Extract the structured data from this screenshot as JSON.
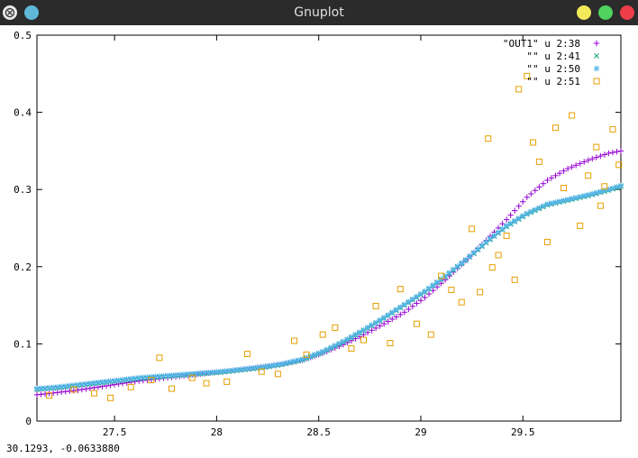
{
  "window": {
    "title": "Gnuplot",
    "menu_glyph": "⨂",
    "status": "30.1293, -0.0633880"
  },
  "colors": {
    "titlebar": "#2b2b2b",
    "series1": "#9400d3",
    "series2": "#009e73",
    "series3": "#56b4e9",
    "series4": "#e69f00"
  },
  "chart_data": {
    "type": "scatter",
    "xlim": [
      27.12,
      29.98
    ],
    "ylim": [
      0,
      0.5
    ],
    "x_ticks": [
      27.5,
      28,
      28.5,
      29,
      29.5
    ],
    "x_tick_labels": [
      "27.5",
      "28",
      "28.5",
      "29",
      "29.5"
    ],
    "y_ticks": [
      0,
      0.1,
      0.2,
      0.3,
      0.4,
      0.5
    ],
    "y_tick_labels": [
      "0",
      "0.1",
      "0.2",
      "0.3",
      "0.4",
      "0.5"
    ],
    "grid": false,
    "legend_position": "top-right",
    "series": [
      {
        "name": "\"OUT1\" u 2:38",
        "marker": "plus",
        "color": "#9400d3",
        "points": [
          [
            27.12,
            0.034
          ],
          [
            27.22,
            0.037
          ],
          [
            27.32,
            0.04
          ],
          [
            27.42,
            0.044
          ],
          [
            27.52,
            0.048
          ],
          [
            27.62,
            0.052
          ],
          [
            27.72,
            0.055
          ],
          [
            27.82,
            0.058
          ],
          [
            27.92,
            0.061
          ],
          [
            28.02,
            0.064
          ],
          [
            28.12,
            0.067
          ],
          [
            28.22,
            0.07
          ],
          [
            28.32,
            0.074
          ],
          [
            28.42,
            0.079
          ],
          [
            28.52,
            0.088
          ],
          [
            28.62,
            0.099
          ],
          [
            28.72,
            0.112
          ],
          [
            28.82,
            0.126
          ],
          [
            28.92,
            0.141
          ],
          [
            29.02,
            0.16
          ],
          [
            29.12,
            0.183
          ],
          [
            29.22,
            0.208
          ],
          [
            29.32,
            0.234
          ],
          [
            29.42,
            0.261
          ],
          [
            29.52,
            0.29
          ],
          [
            29.62,
            0.312
          ],
          [
            29.72,
            0.327
          ],
          [
            29.82,
            0.338
          ],
          [
            29.92,
            0.347
          ],
          [
            29.98,
            0.35
          ]
        ]
      },
      {
        "name": "\"\" u 2:41",
        "marker": "cross",
        "color": "#009e73",
        "points": [
          [
            27.12,
            0.041
          ],
          [
            27.22,
            0.043
          ],
          [
            27.32,
            0.046
          ],
          [
            27.42,
            0.049
          ],
          [
            27.52,
            0.052
          ],
          [
            27.62,
            0.055
          ],
          [
            27.72,
            0.057
          ],
          [
            27.82,
            0.059
          ],
          [
            27.92,
            0.061
          ],
          [
            28.02,
            0.063
          ],
          [
            28.12,
            0.066
          ],
          [
            28.22,
            0.069
          ],
          [
            28.32,
            0.073
          ],
          [
            28.42,
            0.079
          ],
          [
            28.52,
            0.089
          ],
          [
            28.62,
            0.102
          ],
          [
            28.72,
            0.117
          ],
          [
            28.82,
            0.133
          ],
          [
            28.92,
            0.15
          ],
          [
            29.02,
            0.167
          ],
          [
            29.12,
            0.187
          ],
          [
            29.22,
            0.208
          ],
          [
            29.32,
            0.231
          ],
          [
            29.42,
            0.252
          ],
          [
            29.52,
            0.268
          ],
          [
            29.62,
            0.28
          ],
          [
            29.72,
            0.286
          ],
          [
            29.82,
            0.292
          ],
          [
            29.92,
            0.299
          ],
          [
            29.98,
            0.304
          ]
        ]
      },
      {
        "name": "\"\" u 2:50",
        "marker": "star",
        "color": "#56b4e9",
        "points": [
          [
            27.12,
            0.042
          ],
          [
            27.22,
            0.044
          ],
          [
            27.32,
            0.047
          ],
          [
            27.42,
            0.05
          ],
          [
            27.52,
            0.053
          ],
          [
            27.62,
            0.056
          ],
          [
            27.72,
            0.058
          ],
          [
            27.82,
            0.06
          ],
          [
            27.92,
            0.062
          ],
          [
            28.02,
            0.064
          ],
          [
            28.12,
            0.067
          ],
          [
            28.22,
            0.07
          ],
          [
            28.32,
            0.074
          ],
          [
            28.42,
            0.08
          ],
          [
            28.52,
            0.09
          ],
          [
            28.62,
            0.103
          ],
          [
            28.72,
            0.118
          ],
          [
            28.82,
            0.134
          ],
          [
            28.92,
            0.151
          ],
          [
            29.02,
            0.168
          ],
          [
            29.12,
            0.188
          ],
          [
            29.22,
            0.209
          ],
          [
            29.32,
            0.232
          ],
          [
            29.42,
            0.253
          ],
          [
            29.52,
            0.269
          ],
          [
            29.62,
            0.281
          ],
          [
            29.72,
            0.287
          ],
          [
            29.82,
            0.293
          ],
          [
            29.92,
            0.3
          ],
          [
            29.98,
            0.305
          ]
        ]
      },
      {
        "name": "\"\" u 2:51",
        "marker": "square",
        "color": "#e69f00",
        "points": [
          [
            27.18,
            0.033
          ],
          [
            27.3,
            0.041
          ],
          [
            27.4,
            0.036
          ],
          [
            27.48,
            0.03
          ],
          [
            27.58,
            0.044
          ],
          [
            27.68,
            0.053
          ],
          [
            27.72,
            0.082
          ],
          [
            27.78,
            0.042
          ],
          [
            27.88,
            0.056
          ],
          [
            27.95,
            0.049
          ],
          [
            28.05,
            0.051
          ],
          [
            28.15,
            0.087
          ],
          [
            28.22,
            0.064
          ],
          [
            28.3,
            0.061
          ],
          [
            28.38,
            0.104
          ],
          [
            28.44,
            0.086
          ],
          [
            28.52,
            0.112
          ],
          [
            28.58,
            0.121
          ],
          [
            28.66,
            0.094
          ],
          [
            28.72,
            0.105
          ],
          [
            28.78,
            0.149
          ],
          [
            28.85,
            0.101
          ],
          [
            28.9,
            0.171
          ],
          [
            28.98,
            0.126
          ],
          [
            29.05,
            0.112
          ],
          [
            29.1,
            0.188
          ],
          [
            29.15,
            0.17
          ],
          [
            29.2,
            0.154
          ],
          [
            29.25,
            0.249
          ],
          [
            29.29,
            0.167
          ],
          [
            29.33,
            0.366
          ],
          [
            29.38,
            0.215
          ],
          [
            29.42,
            0.24
          ],
          [
            29.46,
            0.183
          ],
          [
            29.48,
            0.43
          ],
          [
            29.52,
            0.447
          ],
          [
            29.55,
            0.361
          ],
          [
            29.58,
            0.336
          ],
          [
            29.62,
            0.232
          ],
          [
            29.66,
            0.38
          ],
          [
            29.7,
            0.302
          ],
          [
            29.74,
            0.396
          ],
          [
            29.78,
            0.253
          ],
          [
            29.82,
            0.318
          ],
          [
            29.86,
            0.355
          ],
          [
            29.9,
            0.304
          ],
          [
            29.94,
            0.378
          ],
          [
            29.97,
            0.332
          ],
          [
            29.88,
            0.279
          ],
          [
            29.35,
            0.199
          ]
        ]
      }
    ]
  }
}
